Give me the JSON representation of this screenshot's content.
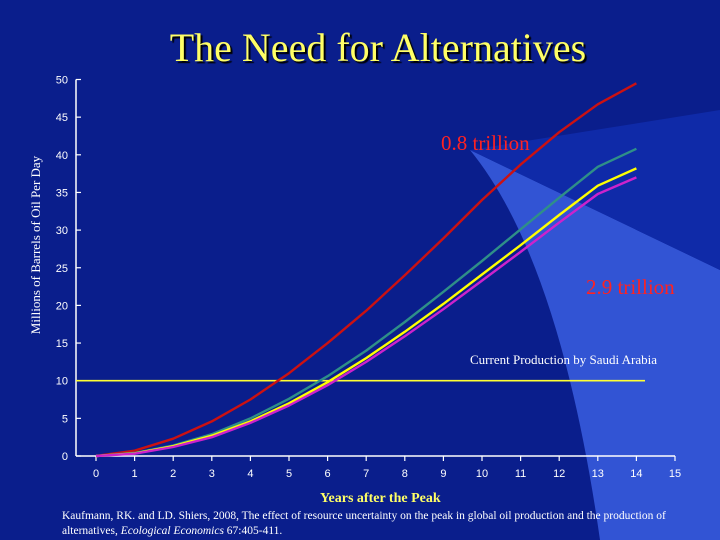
{
  "slide": {
    "title": "The Need for Alternatives",
    "citation_text": "Kaufmann, RK. and LD. Shiers, 2008, The effect of resource uncertainty on the peak in global oil production and the production of alternatives,",
    "citation_journal": "Ecological Economics",
    "citation_tail": " 67:405-411."
  },
  "colors": {
    "background": "#0a1e8c",
    "background_light": "#3a5ee0",
    "title": "#ffff66",
    "axis": "#ffffff"
  },
  "chart_data": {
    "type": "line",
    "title": "The Need for Alternatives",
    "xlabel": "Years after the Peak",
    "ylabel": "Millions of Barrels of Oil Per Day",
    "xlim": [
      0,
      15
    ],
    "ylim": [
      0,
      50
    ],
    "x_ticks": [
      0,
      1,
      2,
      3,
      4,
      5,
      6,
      7,
      8,
      9,
      10,
      11,
      12,
      13,
      14,
      15
    ],
    "y_ticks": [
      0,
      5,
      10,
      15,
      20,
      25,
      30,
      35,
      40,
      45,
      50
    ],
    "x": [
      0,
      1,
      2,
      3,
      4,
      5,
      6,
      7,
      8,
      9,
      10,
      11,
      12,
      13,
      14
    ],
    "series": [
      {
        "color": "#cc1111",
        "values": [
          0,
          0.7,
          2.3,
          4.6,
          7.5,
          11.0,
          15.0,
          19.3,
          24.0,
          28.9,
          34.0,
          38.7,
          43.0,
          46.7,
          49.5
        ]
      },
      {
        "color": "#2f8f88",
        "values": [
          0,
          0.4,
          1.4,
          2.9,
          5.0,
          7.6,
          10.6,
          14.0,
          17.8,
          21.8,
          25.9,
          30.1,
          34.3,
          38.4,
          40.8
        ]
      },
      {
        "color": "#ffff00",
        "values": [
          0,
          0.35,
          1.3,
          2.7,
          4.6,
          7.0,
          9.8,
          13.0,
          16.5,
          20.2,
          24.1,
          28.0,
          32.0,
          35.9,
          38.2
        ]
      },
      {
        "color": "#cc22cc",
        "values": [
          0,
          0.3,
          1.2,
          2.5,
          4.4,
          6.7,
          9.4,
          12.5,
          15.9,
          19.5,
          23.3,
          27.1,
          31.0,
          34.8,
          37.0
        ]
      }
    ],
    "reference_line": {
      "value": 10,
      "label": "Current Production by Saudi Arabia",
      "color": "#ffff33"
    },
    "annotations": [
      {
        "text": "0.8 trillion",
        "color": "#ff2222"
      },
      {
        "text": "2.9 trillion",
        "color": "#ff2222"
      }
    ],
    "grid": false,
    "legend": "none"
  }
}
